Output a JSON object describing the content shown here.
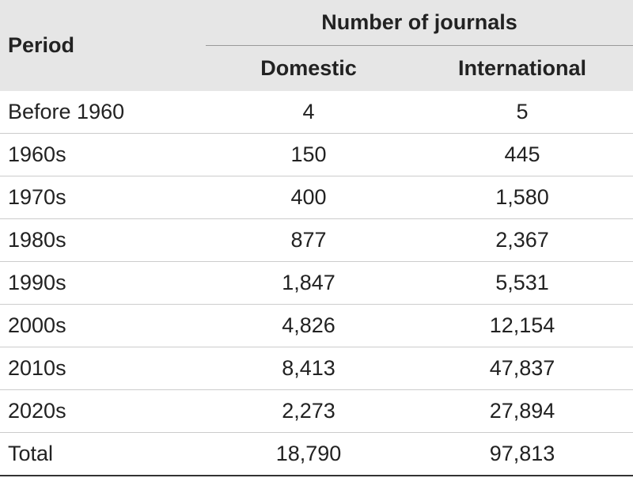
{
  "header": {
    "period": "Period",
    "group": "Number of journals",
    "columns": [
      "Domestic",
      "International"
    ]
  },
  "table": {
    "rows": [
      [
        "Before 1960",
        "4",
        "5"
      ],
      [
        "1960s",
        "150",
        "445"
      ],
      [
        "1970s",
        "400",
        "1,580"
      ],
      [
        "1980s",
        "877",
        "2,367"
      ],
      [
        "1990s",
        "1,847",
        "5,531"
      ],
      [
        "2000s",
        "4,826",
        "12,154"
      ],
      [
        "2010s",
        "8,413",
        "47,837"
      ],
      [
        "2020s",
        "2,273",
        "27,894"
      ],
      [
        "Total",
        "18,790",
        "97,813"
      ]
    ]
  }
}
